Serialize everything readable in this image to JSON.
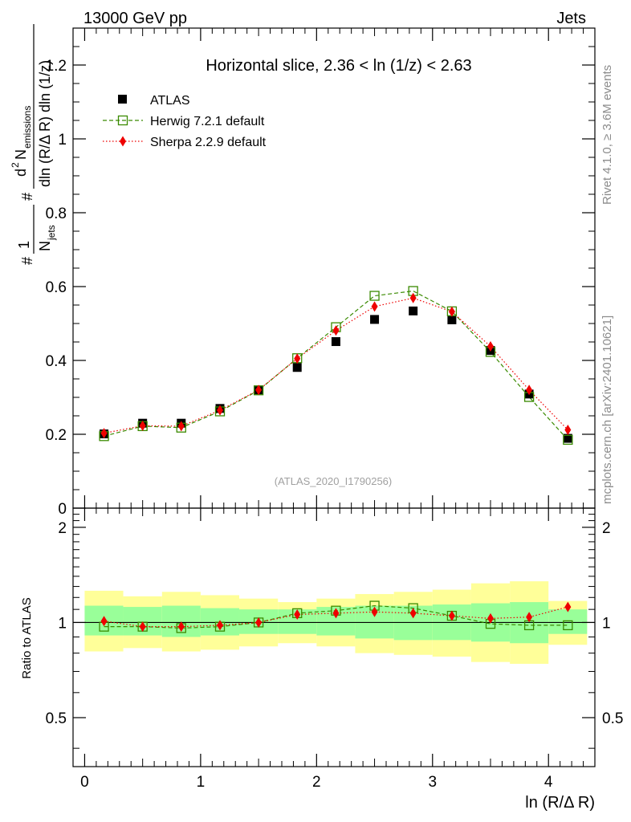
{
  "header": {
    "energy_label": "13000 GeV pp",
    "process_label": "Jets",
    "rivet_label": "Rivet 4.1.0, ≥ 3.6M events",
    "mcplots_label": "mcplots.cern.ch [arXiv:2401.10621]",
    "analysis_label": "(ATLAS_2020_I1790256)"
  },
  "chart_data": [
    {
      "type": "scatter",
      "title": "Horizontal slice, 2.36 < ln (1/z) < 2.63",
      "ylabel_parts": {
        "hash": "#",
        "one": "1",
        "n": "N",
        "jets": "jets",
        "dsup": "d",
        "two": "2",
        "num": "N",
        "emissions": "emissions",
        "den": "dln (R/Δ R) dln (1/z)"
      },
      "xlim": [
        -0.1,
        4.4
      ],
      "ylim": [
        0,
        1.3
      ],
      "yticks": [
        0,
        0.2,
        0.4,
        0.6,
        0.8,
        1,
        1.2
      ],
      "ytick_labels": [
        "0",
        "0.2",
        "0.4",
        "0.6",
        "0.8",
        "1",
        "1.2"
      ],
      "x": [
        0.167,
        0.5,
        0.833,
        1.167,
        1.5,
        1.833,
        2.167,
        2.5,
        2.833,
        3.167,
        3.5,
        3.833,
        4.167
      ],
      "series": [
        {
          "name": "ATLAS",
          "color": "#000000",
          "values": [
            0.201,
            0.23,
            0.23,
            0.27,
            0.32,
            0.381,
            0.451,
            0.511,
            0.534,
            0.51,
            0.427,
            0.309,
            0.189
          ]
        },
        {
          "name": "Herwig 7.2.1 default",
          "color": "#3a8a00",
          "values": [
            0.195,
            0.222,
            0.218,
            0.262,
            0.319,
            0.406,
            0.49,
            0.575,
            0.588,
            0.533,
            0.423,
            0.301,
            0.185
          ]
        },
        {
          "name": "Sherpa 2.2.9 default",
          "color": "#ee0000",
          "values": [
            0.203,
            0.223,
            0.222,
            0.265,
            0.32,
            0.405,
            0.481,
            0.546,
            0.569,
            0.532,
            0.438,
            0.32,
            0.212
          ]
        }
      ]
    },
    {
      "type": "scatter",
      "title": "",
      "xlabel": "ln (R/Δ R)",
      "ylabel": "Ratio to ATLAS",
      "xlim": [
        -0.1,
        4.4
      ],
      "ylim": [
        0.35,
        2.3
      ],
      "yscale": "log",
      "yticks": [
        0.5,
        1,
        2
      ],
      "ytick_labels": [
        "0.5",
        "1",
        "2"
      ],
      "xticks": [
        0,
        1,
        2,
        3,
        4
      ],
      "xtick_labels": [
        "0",
        "1",
        "2",
        "3",
        "4"
      ],
      "x_edges": [
        0.0,
        0.333,
        0.667,
        1.0,
        1.333,
        1.667,
        2.0,
        2.333,
        2.667,
        3.0,
        3.333,
        3.667,
        4.0,
        4.333
      ],
      "band_outer_lo": [
        0.81,
        0.83,
        0.81,
        0.82,
        0.84,
        0.86,
        0.84,
        0.8,
        0.79,
        0.78,
        0.75,
        0.74,
        0.85
      ],
      "band_outer_hi": [
        1.26,
        1.21,
        1.25,
        1.22,
        1.19,
        1.16,
        1.19,
        1.23,
        1.25,
        1.27,
        1.33,
        1.35,
        1.17
      ],
      "band_inner_lo": [
        0.91,
        0.91,
        0.9,
        0.91,
        0.92,
        0.92,
        0.91,
        0.89,
        0.88,
        0.88,
        0.87,
        0.86,
        0.92
      ],
      "band_inner_hi": [
        1.13,
        1.12,
        1.13,
        1.11,
        1.1,
        1.1,
        1.12,
        1.13,
        1.13,
        1.14,
        1.15,
        1.16,
        1.1
      ],
      "x": [
        0.167,
        0.5,
        0.833,
        1.167,
        1.5,
        1.833,
        2.167,
        2.5,
        2.833,
        3.167,
        3.5,
        3.833,
        4.167
      ],
      "series": [
        {
          "name": "ATLAS",
          "color": "#000000",
          "values": [
            1,
            1,
            1,
            1,
            1,
            1,
            1,
            1,
            1,
            1,
            1,
            1,
            1
          ]
        },
        {
          "name": "Herwig 7.2.1 default",
          "color": "#3a8a00",
          "values": [
            0.97,
            0.97,
            0.96,
            0.97,
            1.0,
            1.07,
            1.09,
            1.13,
            1.11,
            1.05,
            0.99,
            0.98,
            0.98
          ]
        },
        {
          "name": "Sherpa 2.2.9 default",
          "color": "#ee0000",
          "values": [
            1.01,
            0.97,
            0.97,
            0.98,
            1.0,
            1.06,
            1.07,
            1.08,
            1.07,
            1.05,
            1.03,
            1.04,
            1.12
          ]
        }
      ],
      "band_colors": {
        "outer": "#ffff99",
        "inner": "#99ff99"
      }
    }
  ]
}
